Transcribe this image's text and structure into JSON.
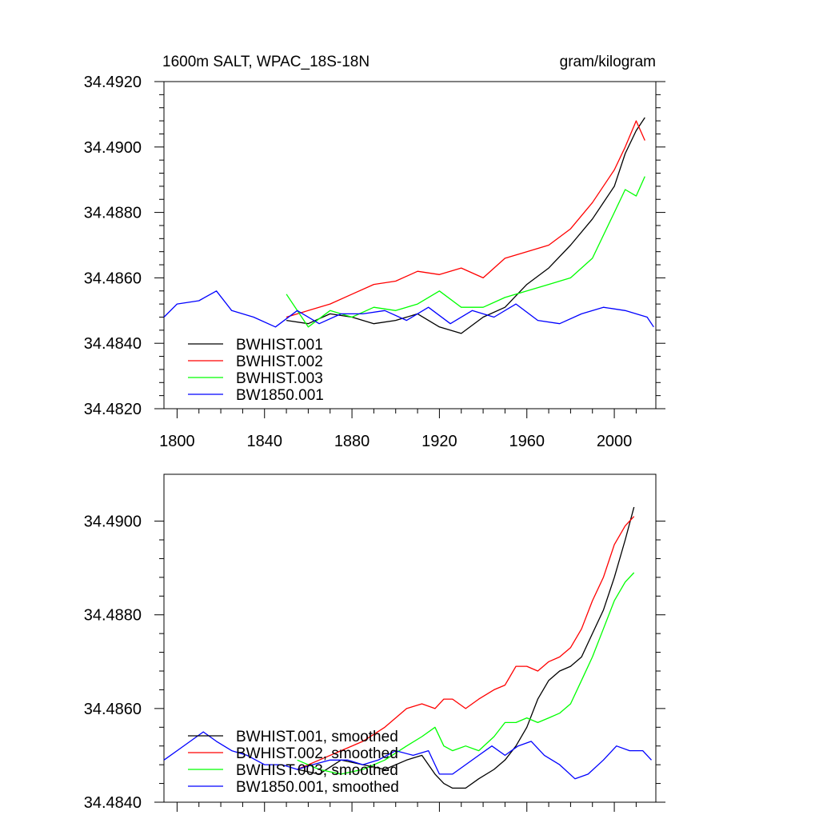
{
  "title_left": "1600m SALT, WPAC_18S-18N",
  "title_right": "gram/kilogram",
  "chart_data": [
    {
      "type": "line",
      "title": "1600m SALT, WPAC_18S-18N",
      "units": "gram/kilogram",
      "xlim": [
        1794,
        2019
      ],
      "ylim": [
        34.482,
        34.492
      ],
      "xticks": [
        1800,
        1840,
        1880,
        1920,
        1960,
        2000
      ],
      "xtick_labels": [
        "1800",
        "1840",
        "1880",
        "1920",
        "1960",
        "2000"
      ],
      "yticks": [
        34.482,
        34.484,
        34.486,
        34.488,
        34.49,
        34.492
      ],
      "ytick_labels": [
        "34.4820",
        "34.4840",
        "34.4860",
        "34.4880",
        "34.4900",
        "34.4920"
      ],
      "legend_position": "bottom-left",
      "series": [
        {
          "name": "BWHIST.001",
          "color": "#000000",
          "x": [
            1850,
            1860,
            1870,
            1880,
            1890,
            1900,
            1910,
            1920,
            1930,
            1940,
            1950,
            1960,
            1970,
            1980,
            1990,
            2000,
            2005,
            2010,
            2014
          ],
          "y": [
            34.4847,
            34.4846,
            34.4849,
            34.4848,
            34.4846,
            34.4847,
            34.4849,
            34.4845,
            34.4843,
            34.4848,
            34.4851,
            34.4858,
            34.4863,
            34.487,
            34.4878,
            34.4888,
            34.4898,
            34.4905,
            34.4909
          ]
        },
        {
          "name": "BWHIST.002",
          "color": "#ff0000",
          "x": [
            1850,
            1860,
            1870,
            1880,
            1890,
            1900,
            1910,
            1920,
            1930,
            1940,
            1950,
            1960,
            1970,
            1980,
            1990,
            2000,
            2005,
            2010,
            2014
          ],
          "y": [
            34.4848,
            34.485,
            34.4852,
            34.4855,
            34.4858,
            34.4859,
            34.4862,
            34.4861,
            34.4863,
            34.486,
            34.4866,
            34.4868,
            34.487,
            34.4875,
            34.4883,
            34.4893,
            34.49,
            34.4908,
            34.4902
          ]
        },
        {
          "name": "BWHIST.003",
          "color": "#00ff00",
          "x": [
            1850,
            1860,
            1870,
            1880,
            1890,
            1900,
            1910,
            1920,
            1930,
            1940,
            1950,
            1960,
            1970,
            1980,
            1990,
            2000,
            2005,
            2010,
            2014
          ],
          "y": [
            34.4855,
            34.4845,
            34.485,
            34.4848,
            34.4851,
            34.485,
            34.4852,
            34.4856,
            34.4851,
            34.4851,
            34.4854,
            34.4856,
            34.4858,
            34.486,
            34.4866,
            34.488,
            34.4887,
            34.4885,
            34.4891
          ]
        },
        {
          "name": "BW1850.001",
          "color": "#0000ff",
          "x": [
            1794,
            1800,
            1810,
            1818,
            1825,
            1835,
            1845,
            1855,
            1865,
            1875,
            1885,
            1895,
            1905,
            1915,
            1925,
            1935,
            1945,
            1955,
            1965,
            1975,
            1985,
            1995,
            2005,
            2015,
            2018
          ],
          "y": [
            34.4848,
            34.4852,
            34.4853,
            34.4856,
            34.485,
            34.4848,
            34.4845,
            34.485,
            34.4846,
            34.4849,
            34.4849,
            34.485,
            34.4847,
            34.4851,
            34.4846,
            34.485,
            34.4848,
            34.4852,
            34.4847,
            34.4846,
            34.4849,
            34.4851,
            34.485,
            34.4848,
            34.4845
          ]
        }
      ]
    },
    {
      "type": "line",
      "xlim": [
        1794,
        2019
      ],
      "ylim": [
        34.484,
        34.491
      ],
      "xticks": [
        1800,
        1840,
        1880,
        1920,
        1960,
        2000
      ],
      "yticks": [
        34.484,
        34.486,
        34.488,
        34.49
      ],
      "ytick_labels": [
        "34.4840",
        "34.4860",
        "34.4880",
        "34.4900"
      ],
      "legend_position": "bottom-left",
      "series": [
        {
          "name": "BWHIST.001, smoothed",
          "color": "#000000",
          "x": [
            1855,
            1865,
            1875,
            1885,
            1895,
            1905,
            1912,
            1918,
            1922,
            1926,
            1932,
            1938,
            1945,
            1950,
            1955,
            1960,
            1965,
            1970,
            1975,
            1980,
            1985,
            1990,
            1995,
            2000,
            2005,
            2009
          ],
          "y": [
            34.4847,
            34.4846,
            34.4849,
            34.4848,
            34.4847,
            34.4849,
            34.485,
            34.4846,
            34.4844,
            34.4843,
            34.4843,
            34.4845,
            34.4847,
            34.4849,
            34.4852,
            34.4856,
            34.4862,
            34.4866,
            34.4868,
            34.4869,
            34.4871,
            34.4876,
            34.4881,
            34.4888,
            34.4896,
            34.4903
          ]
        },
        {
          "name": "BWHIST.002, smoothed",
          "color": "#ff0000",
          "x": [
            1855,
            1865,
            1875,
            1885,
            1895,
            1905,
            1912,
            1918,
            1922,
            1926,
            1932,
            1938,
            1945,
            1950,
            1955,
            1960,
            1965,
            1970,
            1975,
            1980,
            1985,
            1990,
            1995,
            2000,
            2005,
            2009
          ],
          "y": [
            34.4847,
            34.4849,
            34.4851,
            34.4853,
            34.4856,
            34.486,
            34.4861,
            34.486,
            34.4862,
            34.4862,
            34.486,
            34.4862,
            34.4864,
            34.4865,
            34.4869,
            34.4869,
            34.4868,
            34.487,
            34.4871,
            34.4873,
            34.4877,
            34.4883,
            34.4888,
            34.4895,
            34.4899,
            34.4901
          ]
        },
        {
          "name": "BWHIST.003, smoothed",
          "color": "#00ff00",
          "x": [
            1855,
            1865,
            1875,
            1885,
            1895,
            1905,
            1912,
            1918,
            1922,
            1926,
            1932,
            1938,
            1945,
            1950,
            1955,
            1960,
            1965,
            1970,
            1975,
            1980,
            1985,
            1990,
            1995,
            2000,
            2005,
            2009
          ],
          "y": [
            34.4849,
            34.4847,
            34.4846,
            34.4847,
            34.4849,
            34.4852,
            34.4854,
            34.4856,
            34.4852,
            34.4851,
            34.4852,
            34.4851,
            34.4854,
            34.4857,
            34.4857,
            34.4858,
            34.4857,
            34.4858,
            34.4859,
            34.4861,
            34.4866,
            34.4871,
            34.4877,
            34.4883,
            34.4887,
            34.4889
          ]
        },
        {
          "name": "BW1850.001, smoothed",
          "color": "#0000ff",
          "x": [
            1794,
            1800,
            1806,
            1812,
            1818,
            1825,
            1832,
            1840,
            1848,
            1855,
            1862,
            1870,
            1878,
            1885,
            1892,
            1900,
            1908,
            1915,
            1920,
            1926,
            1932,
            1938,
            1944,
            1950,
            1956,
            1962,
            1968,
            1975,
            1982,
            1988,
            1995,
            2001,
            2007,
            2013,
            2017
          ],
          "y": [
            34.4849,
            34.4851,
            34.4853,
            34.4855,
            34.4853,
            34.4851,
            34.485,
            34.4848,
            34.4848,
            34.4847,
            34.4848,
            34.4849,
            34.4849,
            34.4848,
            34.4849,
            34.4851,
            34.485,
            34.4851,
            34.4846,
            34.4846,
            34.4848,
            34.485,
            34.4852,
            34.485,
            34.4852,
            34.4853,
            34.485,
            34.4848,
            34.4845,
            34.4846,
            34.4849,
            34.4852,
            34.4851,
            34.4851,
            34.4849
          ]
        }
      ]
    }
  ]
}
